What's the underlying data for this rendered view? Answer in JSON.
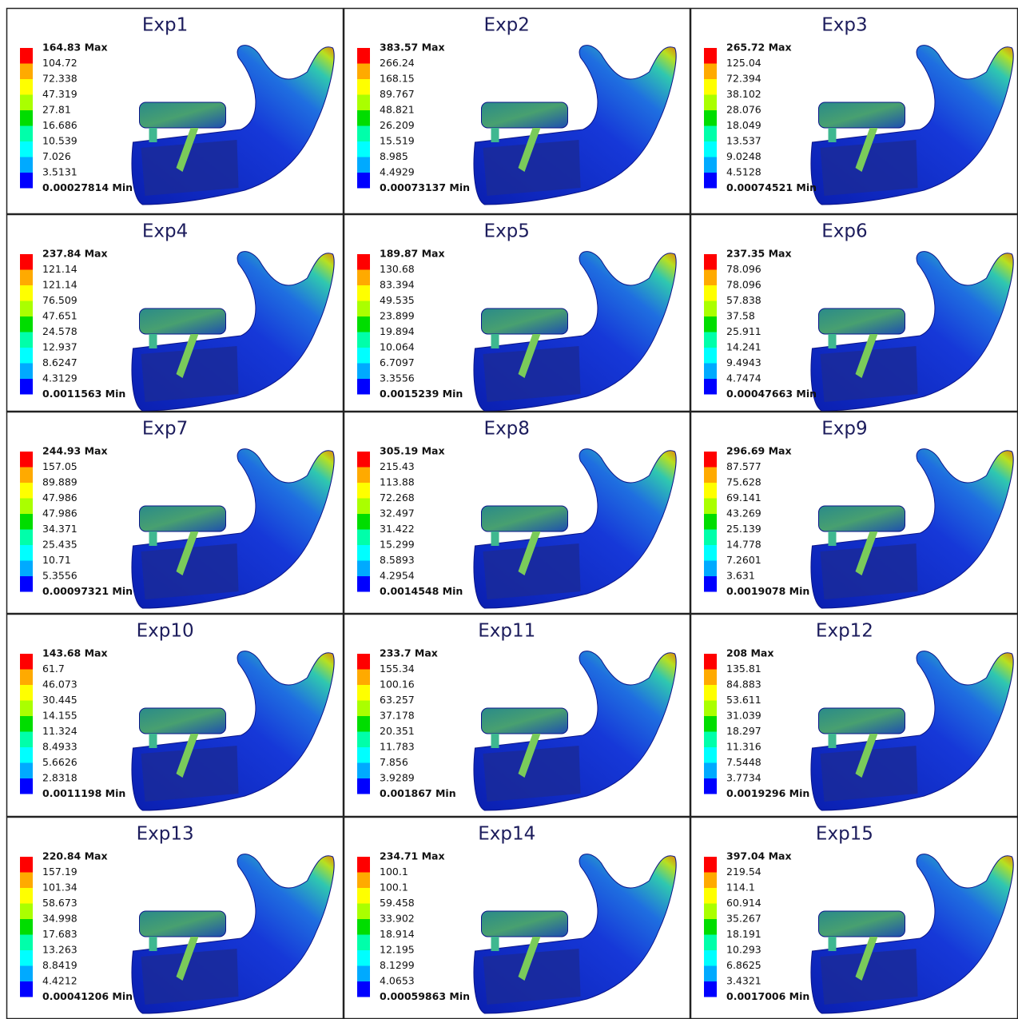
{
  "panels": [
    {
      "title": "Exp1",
      "legend": [
        "164.83 Max",
        "104.72",
        "72.338",
        "47.319",
        "27.81",
        "16.686",
        "10.539",
        "7.026",
        "3.5131",
        "0.00027814 Min"
      ]
    },
    {
      "title": "Exp2",
      "legend": [
        "383.57 Max",
        "266.24",
        "168.15",
        "89.767",
        "48.821",
        "26.209",
        "15.519",
        "8.985",
        "4.4929",
        "0.00073137 Min"
      ]
    },
    {
      "title": "Exp3",
      "legend": [
        "265.72 Max",
        "125.04",
        "72.394",
        "38.102",
        "28.076",
        "18.049",
        "13.537",
        "9.0248",
        "4.5128",
        "0.00074521 Min"
      ]
    },
    {
      "title": "Exp4",
      "legend": [
        "237.84 Max",
        "121.14",
        "121.14",
        "76.509",
        "47.651",
        "24.578",
        "12.937",
        "8.6247",
        "4.3129",
        "0.0011563 Min"
      ]
    },
    {
      "title": "Exp5",
      "legend": [
        "189.87 Max",
        "130.68",
        "83.394",
        "49.535",
        "23.899",
        "19.894",
        "10.064",
        "6.7097",
        "3.3556",
        "0.0015239 Min"
      ]
    },
    {
      "title": "Exp6",
      "legend": [
        "237.35 Max",
        "78.096",
        "78.096",
        "57.838",
        "37.58",
        "25.911",
        "14.241",
        "9.4943",
        "4.7474",
        "0.00047663 Min"
      ]
    },
    {
      "title": "Exp7",
      "legend": [
        "244.93 Max",
        "157.05",
        "89.889",
        "47.986",
        "47.986",
        "34.371",
        "25.435",
        "10.71",
        "5.3556",
        "0.00097321 Min"
      ]
    },
    {
      "title": "Exp8",
      "legend": [
        "305.19 Max",
        "215.43",
        "113.88",
        "72.268",
        "32.497",
        "31.422",
        "15.299",
        "8.5893",
        "4.2954",
        "0.0014548 Min"
      ]
    },
    {
      "title": "Exp9",
      "legend": [
        "296.69 Max",
        "87.577",
        "75.628",
        "69.141",
        "43.269",
        "25.139",
        "14.778",
        "7.2601",
        "3.631",
        "0.0019078 Min"
      ]
    },
    {
      "title": "Exp10",
      "legend": [
        "143.68 Max",
        "61.7",
        "46.073",
        "30.445",
        "14.155",
        "11.324",
        "8.4933",
        "5.6626",
        "2.8318",
        "0.0011198 Min"
      ]
    },
    {
      "title": "Exp11",
      "legend": [
        "233.7 Max",
        "155.34",
        "100.16",
        "63.257",
        "37.178",
        "20.351",
        "11.783",
        "7.856",
        "3.9289",
        "0.001867 Min"
      ]
    },
    {
      "title": "Exp12",
      "legend": [
        "208 Max",
        "135.81",
        "84.883",
        "53.611",
        "31.039",
        "18.297",
        "11.316",
        "7.5448",
        "3.7734",
        "0.0019296 Min"
      ]
    },
    {
      "title": "Exp13",
      "legend": [
        "220.84 Max",
        "157.19",
        "101.34",
        "58.673",
        "34.998",
        "17.683",
        "13.263",
        "8.8419",
        "4.4212",
        "0.00041206 Min"
      ]
    },
    {
      "title": "Exp14",
      "legend": [
        "234.71 Max",
        "100.1",
        "100.1",
        "59.458",
        "33.902",
        "18.914",
        "12.195",
        "8.1299",
        "4.0653",
        "0.00059863 Min"
      ]
    },
    {
      "title": "Exp15",
      "legend": [
        "397.04 Max",
        "219.54",
        "114.1",
        "60.914",
        "35.267",
        "18.191",
        "10.293",
        "6.8625",
        "3.4321",
        "0.0017006 Min"
      ]
    }
  ]
}
